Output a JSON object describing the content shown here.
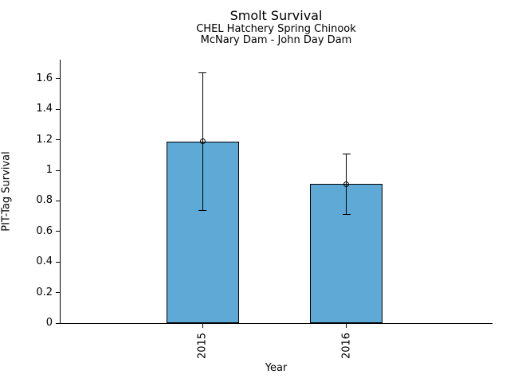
{
  "chart_data": {
    "type": "bar",
    "title": "Smolt Survival",
    "subtitle": [
      "CHEL Hatchery Spring Chinook",
      "McNary Dam - John Day Dam"
    ],
    "xlabel": "Year",
    "ylabel": "PIT-Tag Survival",
    "categories": [
      "2015",
      "2016"
    ],
    "series": [
      {
        "name": "PIT-Tag Survival",
        "values": [
          1.19,
          0.91
        ],
        "error_lower": [
          0.74,
          0.71
        ],
        "error_upper": [
          1.64,
          1.11
        ]
      }
    ],
    "yticks": [
      0,
      0.2,
      0.4,
      0.6,
      0.8,
      1,
      1.2,
      1.4,
      1.6
    ],
    "ytick_labels": [
      "0",
      "0.2",
      "0.4",
      "0.6",
      "0.8",
      "1",
      "1.2",
      "1.4",
      "1.6"
    ],
    "ylim": [
      0,
      1.725
    ],
    "grid": false,
    "legend": false,
    "marker": "open-circle",
    "bar_color": "#5EA9D6",
    "bar_edge_color": "#000000",
    "error_color": "#000000",
    "background_color": "#ffffff",
    "text_color": "#000000"
  }
}
